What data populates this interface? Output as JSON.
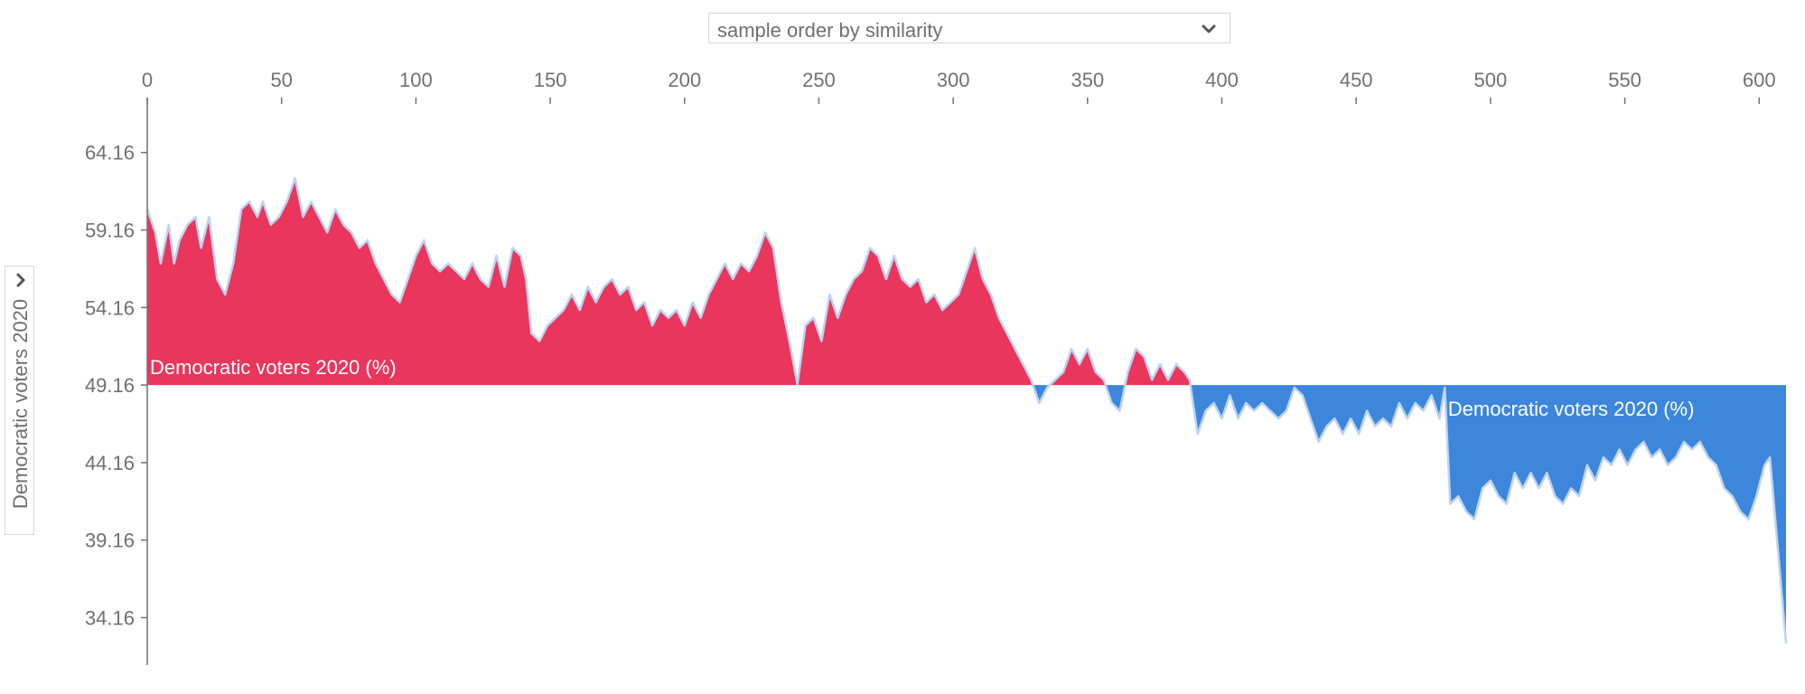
{
  "controls": {
    "order_select_value": "sample order by similarity",
    "y_selector_value": "Democratic voters 2020"
  },
  "icons": {
    "order_select": "chevron-down-icon",
    "y_selector": "chevron-right-icon"
  },
  "colors": {
    "above_baseline": "#ea365c",
    "below_baseline": "#3c86dc",
    "outline": "#bcd3f2",
    "axis": "#707070"
  },
  "chart_data": {
    "type": "area",
    "ylabel": "Democratic voters 2020",
    "series_label": "Democratic voters 2020 (%)",
    "baseline": 49.16,
    "xlim": [
      0,
      610
    ],
    "ylim": [
      31.1,
      67.7
    ],
    "x_ticks": [
      0,
      50,
      100,
      150,
      200,
      250,
      300,
      350,
      400,
      450,
      500,
      550,
      600
    ],
    "y_ticks": [
      64.16,
      59.16,
      54.16,
      49.16,
      44.16,
      39.16,
      34.16
    ],
    "grid": false,
    "x_axis_position": "top",
    "points": [
      [
        0,
        60.5
      ],
      [
        3,
        59.0
      ],
      [
        5,
        57.0
      ],
      [
        8,
        59.5
      ],
      [
        10,
        57.0
      ],
      [
        12,
        58.5
      ],
      [
        15,
        59.5
      ],
      [
        18,
        60.0
      ],
      [
        20,
        58.0
      ],
      [
        23,
        60.0
      ],
      [
        26,
        56.0
      ],
      [
        29,
        55.0
      ],
      [
        32,
        57.0
      ],
      [
        35,
        60.5
      ],
      [
        38,
        61.0
      ],
      [
        41,
        60.0
      ],
      [
        43,
        61.0
      ],
      [
        46,
        59.5
      ],
      [
        49,
        60.0
      ],
      [
        52,
        61.0
      ],
      [
        55,
        62.5
      ],
      [
        58,
        60.0
      ],
      [
        61,
        61.0
      ],
      [
        64,
        60.0
      ],
      [
        67,
        59.0
      ],
      [
        70,
        60.5
      ],
      [
        73,
        59.5
      ],
      [
        76,
        59.0
      ],
      [
        79,
        58.0
      ],
      [
        82,
        58.5
      ],
      [
        85,
        57.0
      ],
      [
        88,
        56.0
      ],
      [
        91,
        55.0
      ],
      [
        94,
        54.5
      ],
      [
        97,
        56.0
      ],
      [
        100,
        57.5
      ],
      [
        103,
        58.5
      ],
      [
        106,
        57.0
      ],
      [
        109,
        56.5
      ],
      [
        112,
        57.0
      ],
      [
        115,
        56.5
      ],
      [
        118,
        56.0
      ],
      [
        121,
        57.0
      ],
      [
        124,
        56.0
      ],
      [
        127,
        55.5
      ],
      [
        130,
        57.5
      ],
      [
        133,
        55.5
      ],
      [
        136,
        58.0
      ],
      [
        139,
        57.5
      ],
      [
        141,
        56.0
      ],
      [
        143,
        52.5
      ],
      [
        146,
        52.0
      ],
      [
        149,
        53.0
      ],
      [
        152,
        53.5
      ],
      [
        155,
        54.0
      ],
      [
        158,
        55.0
      ],
      [
        161,
        54.0
      ],
      [
        164,
        55.5
      ],
      [
        167,
        54.5
      ],
      [
        170,
        55.5
      ],
      [
        173,
        56.0
      ],
      [
        176,
        55.0
      ],
      [
        179,
        55.5
      ],
      [
        182,
        54.0
      ],
      [
        185,
        54.5
      ],
      [
        188,
        53.0
      ],
      [
        191,
        54.0
      ],
      [
        194,
        53.5
      ],
      [
        197,
        54.0
      ],
      [
        200,
        53.0
      ],
      [
        203,
        54.5
      ],
      [
        206,
        53.5
      ],
      [
        209,
        55.0
      ],
      [
        212,
        56.0
      ],
      [
        215,
        57.0
      ],
      [
        218,
        56.0
      ],
      [
        221,
        57.0
      ],
      [
        224,
        56.5
      ],
      [
        227,
        57.5
      ],
      [
        230,
        59.0
      ],
      [
        233,
        58.0
      ],
      [
        236,
        54.5
      ],
      [
        239,
        52.0
      ],
      [
        242,
        49.2
      ],
      [
        245,
        53.0
      ],
      [
        248,
        53.5
      ],
      [
        251,
        52.0
      ],
      [
        254,
        55.0
      ],
      [
        257,
        53.5
      ],
      [
        260,
        55.0
      ],
      [
        263,
        56.0
      ],
      [
        266,
        56.5
      ],
      [
        269,
        58.0
      ],
      [
        272,
        57.5
      ],
      [
        275,
        56.0
      ],
      [
        278,
        57.5
      ],
      [
        281,
        56.0
      ],
      [
        284,
        55.5
      ],
      [
        287,
        56.0
      ],
      [
        290,
        54.5
      ],
      [
        293,
        55.0
      ],
      [
        296,
        54.0
      ],
      [
        299,
        54.5
      ],
      [
        302,
        55.0
      ],
      [
        305,
        56.5
      ],
      [
        308,
        58.0
      ],
      [
        311,
        56.0
      ],
      [
        314,
        55.0
      ],
      [
        317,
        53.5
      ],
      [
        320,
        52.5
      ],
      [
        323,
        51.5
      ],
      [
        326,
        50.5
      ],
      [
        329,
        49.5
      ],
      [
        332,
        48.0
      ],
      [
        335,
        49.0
      ],
      [
        338,
        49.5
      ],
      [
        341,
        50.0
      ],
      [
        344,
        51.5
      ],
      [
        347,
        50.5
      ],
      [
        350,
        51.5
      ],
      [
        353,
        50.0
      ],
      [
        356,
        49.5
      ],
      [
        359,
        48.0
      ],
      [
        362,
        47.5
      ],
      [
        365,
        50.0
      ],
      [
        368,
        51.5
      ],
      [
        371,
        51.0
      ],
      [
        374,
        49.5
      ],
      [
        377,
        50.5
      ],
      [
        380,
        49.5
      ],
      [
        383,
        50.5
      ],
      [
        386,
        50.0
      ],
      [
        388,
        49.5
      ],
      [
        391,
        46.0
      ],
      [
        394,
        47.5
      ],
      [
        397,
        48.0
      ],
      [
        400,
        47.0
      ],
      [
        403,
        48.5
      ],
      [
        406,
        47.0
      ],
      [
        409,
        48.0
      ],
      [
        412,
        47.5
      ],
      [
        415,
        48.0
      ],
      [
        418,
        47.5
      ],
      [
        421,
        47.0
      ],
      [
        424,
        47.5
      ],
      [
        427,
        49.0
      ],
      [
        430,
        48.5
      ],
      [
        433,
        47.0
      ],
      [
        436,
        45.5
      ],
      [
        439,
        46.5
      ],
      [
        442,
        47.0
      ],
      [
        445,
        46.0
      ],
      [
        448,
        47.0
      ],
      [
        451,
        46.0
      ],
      [
        454,
        47.5
      ],
      [
        457,
        46.5
      ],
      [
        460,
        47.0
      ],
      [
        463,
        46.5
      ],
      [
        466,
        48.0
      ],
      [
        469,
        47.0
      ],
      [
        472,
        48.0
      ],
      [
        475,
        47.5
      ],
      [
        478,
        48.5
      ],
      [
        481,
        47.0
      ],
      [
        483,
        49.0
      ],
      [
        485,
        41.5
      ],
      [
        488,
        42.0
      ],
      [
        491,
        41.0
      ],
      [
        494,
        40.5
      ],
      [
        497,
        42.5
      ],
      [
        500,
        43.0
      ],
      [
        503,
        42.0
      ],
      [
        506,
        41.5
      ],
      [
        509,
        43.5
      ],
      [
        512,
        42.5
      ],
      [
        515,
        43.5
      ],
      [
        518,
        42.5
      ],
      [
        521,
        43.5
      ],
      [
        524,
        42.0
      ],
      [
        527,
        41.5
      ],
      [
        530,
        42.5
      ],
      [
        533,
        42.0
      ],
      [
        536,
        44.0
      ],
      [
        539,
        43.0
      ],
      [
        542,
        44.5
      ],
      [
        545,
        44.0
      ],
      [
        548,
        45.0
      ],
      [
        551,
        44.0
      ],
      [
        554,
        45.0
      ],
      [
        557,
        45.5
      ],
      [
        560,
        44.5
      ],
      [
        563,
        45.0
      ],
      [
        566,
        44.0
      ],
      [
        569,
        44.5
      ],
      [
        572,
        45.5
      ],
      [
        575,
        45.0
      ],
      [
        578,
        45.5
      ],
      [
        581,
        44.5
      ],
      [
        584,
        44.0
      ],
      [
        587,
        42.5
      ],
      [
        590,
        42.0
      ],
      [
        593,
        41.0
      ],
      [
        596,
        40.5
      ],
      [
        599,
        42.0
      ],
      [
        602,
        44.0
      ],
      [
        604,
        44.5
      ],
      [
        606,
        40.5
      ],
      [
        608,
        36.5
      ],
      [
        610,
        32.5
      ]
    ]
  }
}
